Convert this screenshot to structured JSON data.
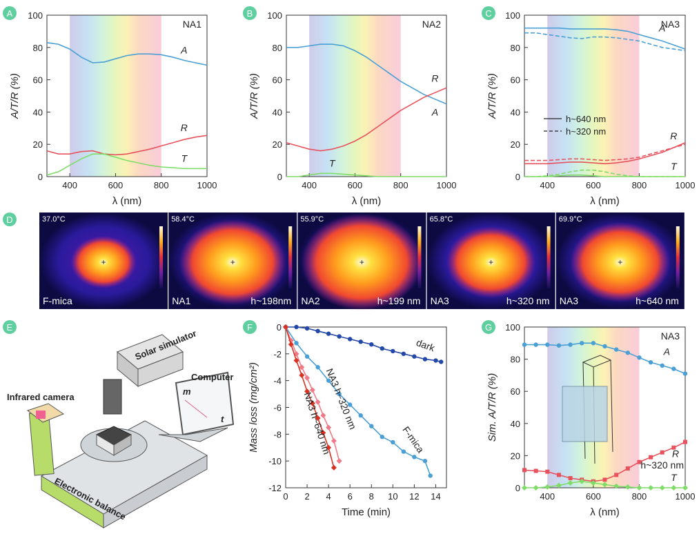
{
  "panel_labels": [
    "A",
    "B",
    "C",
    "D",
    "E",
    "F",
    "G"
  ],
  "chart_data": [
    {
      "type": "line",
      "annotation": "NA1",
      "xlabel": "λ (nm)",
      "ylabel": "A/T/R (%)",
      "xlim": [
        300,
        1000
      ],
      "ylim": [
        0,
        100
      ],
      "xticks": [
        400,
        600,
        800,
        1000
      ],
      "yticks": [
        0,
        20,
        40,
        60,
        80,
        100
      ],
      "shaded_range": [
        400,
        800
      ],
      "x": [
        300,
        350,
        400,
        450,
        500,
        550,
        600,
        650,
        700,
        750,
        800,
        850,
        900,
        950,
        1000
      ],
      "series": [
        {
          "name": "A",
          "color": "#4a9fd5",
          "values": [
            83,
            82,
            79,
            74,
            70.5,
            71,
            73,
            75,
            76,
            76,
            75.5,
            74,
            72,
            70.5,
            69
          ]
        },
        {
          "name": "R",
          "color": "#e8525c",
          "values": [
            16,
            14,
            14,
            15.5,
            16,
            14,
            13.5,
            14,
            15.5,
            17,
            19,
            21,
            23,
            24.5,
            25.5
          ]
        },
        {
          "name": "T",
          "color": "#7fdc68",
          "values": [
            1,
            3,
            7,
            11,
            14,
            14,
            12,
            10,
            8.5,
            7,
            6,
            5.5,
            5,
            5,
            5
          ]
        }
      ]
    },
    {
      "type": "line",
      "annotation": "NA2",
      "xlabel": "λ (nm)",
      "ylabel": "A/T/R (%)",
      "xlim": [
        300,
        1000
      ],
      "ylim": [
        0,
        100
      ],
      "xticks": [
        400,
        600,
        800,
        1000
      ],
      "yticks": [
        0,
        20,
        40,
        60,
        80,
        100
      ],
      "shaded_range": [
        400,
        800
      ],
      "x": [
        300,
        350,
        400,
        450,
        500,
        550,
        600,
        650,
        700,
        750,
        800,
        850,
        900,
        950,
        1000
      ],
      "series": [
        {
          "name": "A",
          "color": "#4a9fd5",
          "values": [
            80,
            80,
            81,
            82,
            82,
            81,
            78,
            74,
            69,
            64,
            59,
            55,
            51,
            48,
            45
          ]
        },
        {
          "name": "R",
          "color": "#e8525c",
          "values": [
            21,
            19,
            17,
            16,
            17,
            19,
            22,
            26,
            31,
            36,
            41,
            45,
            49,
            52,
            55
          ]
        },
        {
          "name": "T",
          "color": "#7fdc68",
          "values": [
            0,
            0,
            1,
            2,
            2,
            1.5,
            1,
            0.5,
            0,
            0,
            0,
            0,
            0,
            0,
            0
          ]
        }
      ]
    },
    {
      "type": "line",
      "annotation": "NA3",
      "xlabel": "λ (nm)",
      "ylabel": "A/T/R (%)",
      "xlim": [
        300,
        1000
      ],
      "ylim": [
        0,
        100
      ],
      "xticks": [
        400,
        600,
        800,
        1000
      ],
      "yticks": [
        0,
        20,
        40,
        60,
        80,
        100
      ],
      "shaded_range": [
        400,
        800
      ],
      "legend": [
        {
          "label": "h~640 nm",
          "style": "solid"
        },
        {
          "label": "h~320 nm",
          "style": "dashed"
        }
      ],
      "x": [
        300,
        350,
        400,
        450,
        500,
        550,
        600,
        650,
        700,
        750,
        800,
        850,
        900,
        950,
        1000
      ],
      "series": [
        {
          "name": "A",
          "color": "#4a9fd5",
          "values": [
            92,
            92,
            92,
            92,
            91.5,
            91.5,
            91.5,
            91.5,
            91,
            90,
            88,
            86,
            84,
            81.5,
            79
          ],
          "values_dashed": [
            89,
            89,
            88,
            87,
            86,
            85.5,
            86.5,
            86.5,
            86,
            85,
            84,
            82,
            80,
            79,
            78
          ]
        },
        {
          "name": "R",
          "color": "#e8525c",
          "values": [
            8,
            8,
            8,
            8.5,
            9,
            9,
            8.5,
            8,
            8.5,
            9.5,
            11,
            13,
            15,
            18,
            21
          ],
          "values_dashed": [
            10,
            10,
            10,
            10.5,
            11,
            11,
            10.5,
            10,
            10.5,
            11,
            12,
            14,
            16,
            18,
            20
          ]
        },
        {
          "name": "T",
          "color": "#7fdc68",
          "values": [
            0,
            0,
            0,
            0.5,
            1,
            1,
            0.5,
            0,
            0,
            0,
            0,
            0,
            0,
            0,
            0
          ],
          "values_dashed": [
            0,
            0,
            0.5,
            1.5,
            3,
            4,
            4,
            3,
            1.5,
            0.5,
            0,
            0,
            0,
            0,
            0
          ]
        }
      ]
    },
    {
      "type": "line",
      "xlabel": "Time (min)",
      "ylabel": "Mass loss (mg/cm²)",
      "xlim": [
        0,
        15
      ],
      "ylim": [
        -12,
        0
      ],
      "xticks": [
        0,
        2,
        4,
        6,
        8,
        10,
        12,
        14
      ],
      "yticks": [
        0,
        -2,
        -4,
        -6,
        -8,
        -10,
        -12
      ],
      "series": [
        {
          "name": "dark",
          "color": "#2348a8",
          "marker": "circle",
          "x": [
            0,
            1,
            2,
            3,
            4,
            5,
            6,
            7,
            8,
            9,
            10,
            11,
            12,
            13,
            14,
            14.5
          ],
          "values": [
            0,
            0,
            -0.1,
            -0.3,
            -0.5,
            -0.7,
            -0.9,
            -1.1,
            -1.3,
            -1.6,
            -1.8,
            -2,
            -2.2,
            -2.4,
            -2.5,
            -2.6
          ]
        },
        {
          "name": "F-mica",
          "color": "#4a9fd5",
          "marker": "circle",
          "x": [
            0,
            1,
            2,
            3,
            4,
            5,
            6,
            7,
            8,
            9,
            10,
            11,
            12,
            13,
            13.5
          ],
          "values": [
            0,
            -1.2,
            -2.2,
            -3,
            -4,
            -5,
            -5.8,
            -6.6,
            -7.4,
            -8.2,
            -8.6,
            -9.3,
            -9.7,
            -10,
            -11.1
          ]
        },
        {
          "name": "NA3 h~320 nm",
          "color": "#f07a88",
          "marker": "diamond",
          "x": [
            0,
            0.5,
            1,
            1.5,
            2,
            2.5,
            3,
            3.5,
            4,
            4.5,
            5
          ],
          "values": [
            0,
            -1,
            -2,
            -3,
            -3.8,
            -4.7,
            -5.6,
            -6.6,
            -7.5,
            -8.5,
            -10
          ]
        },
        {
          "name": "NA3 h~640 nm",
          "color": "#d83222",
          "marker": "diamond",
          "x": [
            0,
            0.5,
            1,
            1.5,
            2,
            2.5,
            3,
            3.5,
            4,
            4.5
          ],
          "values": [
            0,
            -1.3,
            -2.5,
            -3.6,
            -4.8,
            -5.7,
            -6.8,
            -7.9,
            -9,
            -10.5
          ]
        }
      ]
    },
    {
      "type": "line",
      "annotation": "NA3",
      "note": "h~320 nm",
      "xlabel": "λ (nm)",
      "ylabel": "Sim. A/T/R (%)",
      "xlim": [
        300,
        1000
      ],
      "ylim": [
        0,
        100
      ],
      "xticks": [
        400,
        600,
        800,
        1000
      ],
      "yticks": [
        0,
        20,
        40,
        60,
        80,
        100
      ],
      "shaded_range": [
        400,
        800
      ],
      "x": [
        300,
        350,
        400,
        450,
        500,
        550,
        600,
        650,
        700,
        750,
        800,
        850,
        900,
        950,
        1000
      ],
      "series": [
        {
          "name": "A",
          "color": "#4a9fd5",
          "marker": "circle",
          "values": [
            89,
            89,
            89,
            88.5,
            89,
            90,
            90,
            88,
            86,
            84,
            81,
            78,
            76,
            74,
            71
          ]
        },
        {
          "name": "R",
          "color": "#e8525c",
          "marker": "square",
          "values": [
            11,
            10.5,
            10,
            8,
            6,
            5,
            4,
            5,
            8,
            12,
            16,
            19,
            22,
            25,
            28.5
          ]
        },
        {
          "name": "T",
          "color": "#7fdc68",
          "marker": "diamond",
          "values": [
            0,
            0,
            0.5,
            1.5,
            3,
            4,
            3,
            2,
            1,
            0.5,
            0,
            0,
            0,
            0,
            0
          ]
        }
      ]
    }
  ],
  "thermal_images": [
    {
      "temperature": "37.0°C",
      "sample": "F-mica"
    },
    {
      "temperature": "58.4°C",
      "sample": "NA1",
      "height": "h~198nm"
    },
    {
      "temperature": "55.9°C",
      "sample": "NA2",
      "height": "h~199 nm"
    },
    {
      "temperature": "65.8°C",
      "sample": "NA3",
      "height": "h~320 nm"
    },
    {
      "temperature": "69.9°C",
      "sample": "NA3",
      "height": "h~640 nm"
    }
  ],
  "schematic": {
    "solar": "Solar simulator",
    "computer": "Computer",
    "camera": "Infrared camera",
    "balance": "Electronic balance",
    "m": "m",
    "t": "t"
  }
}
